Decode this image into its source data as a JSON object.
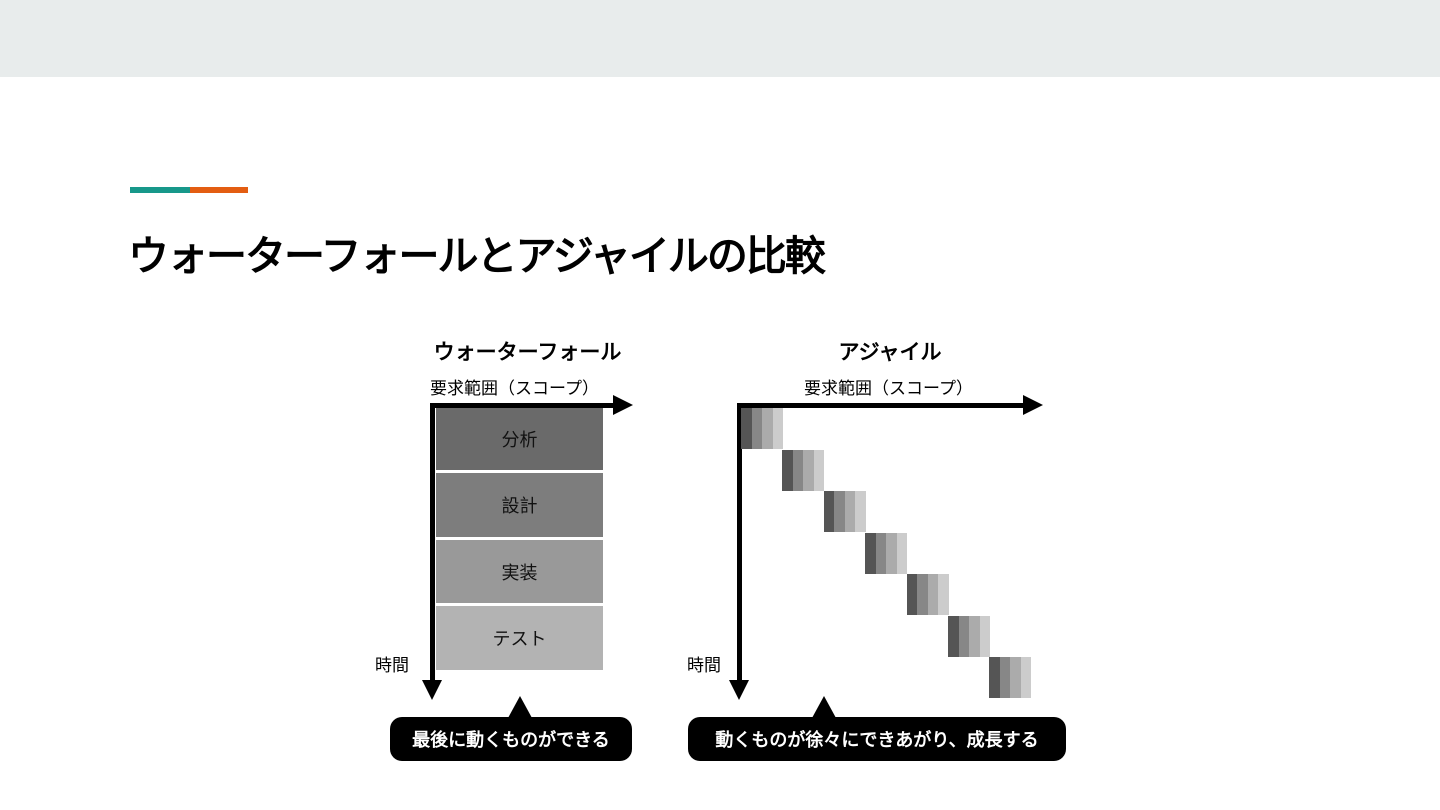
{
  "slide": {
    "title": "ウォーターフォールとアジャイルの比較",
    "accent_colors": [
      "#17988a",
      "#e35d12"
    ]
  },
  "waterfall": {
    "title": "ウォーターフォール",
    "x_axis_label": "要求範囲（スコープ）",
    "y_axis_label": "時間",
    "phases": [
      {
        "label": "分析",
        "color": "#6a6a6a"
      },
      {
        "label": "設計",
        "color": "#7d7d7d"
      },
      {
        "label": "実装",
        "color": "#999999"
      },
      {
        "label": "テスト",
        "color": "#b3b3b3"
      }
    ],
    "callout": "最後に動くものができる"
  },
  "agile": {
    "title": "アジャイル",
    "x_axis_label": "要求範囲（スコープ）",
    "y_axis_label": "時間",
    "iterations": 7,
    "stripe_colors": [
      "#555555",
      "#878787",
      "#ababab",
      "#cccccc"
    ],
    "callout": "動くものが徐々にできあがり、成長する"
  }
}
